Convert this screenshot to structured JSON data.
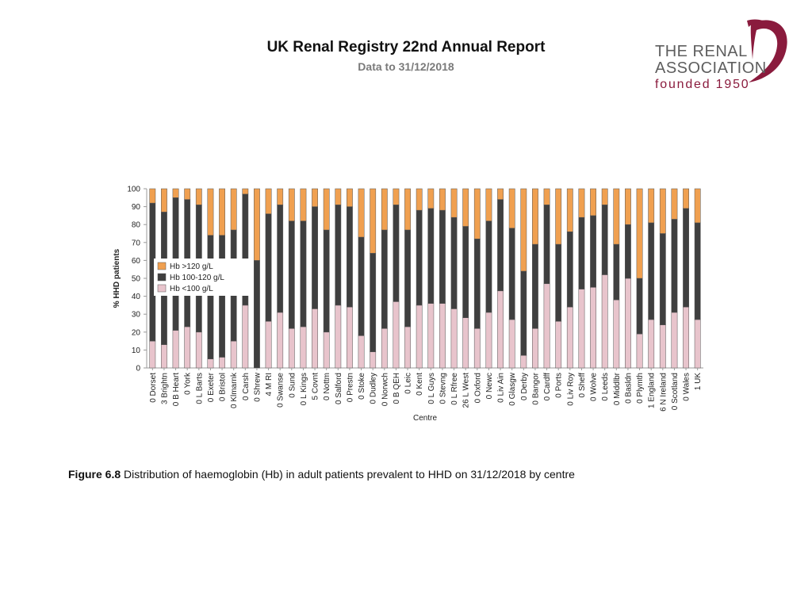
{
  "header": {
    "title": "UK Renal Registry 22nd Annual Report",
    "subtitle": "Data to 31/12/2018"
  },
  "logo": {
    "line1": "THE RENAL",
    "line2": "ASSOCIATION",
    "line3": "founded 1950",
    "color_text": "#5e5e5e",
    "color_accent": "#8a1b3d"
  },
  "caption": {
    "label": "Figure 6.8",
    "text": "Distribution of haemoglobin (Hb) in adult patients prevalent to HHD on 31/12/2018 by centre"
  },
  "chart_data": {
    "type": "bar",
    "stacked": true,
    "xlabel": "Centre",
    "ylabel": "% HHD patients",
    "ylim": [
      0,
      100
    ],
    "yticks": [
      0,
      10,
      20,
      30,
      40,
      50,
      60,
      70,
      80,
      90,
      100
    ],
    "legend_position": "middle-left",
    "categories": [
      "0 Dorset",
      "3 Brightn",
      "0 B Heart",
      "0 York",
      "0 L Barts",
      "0 Exeter",
      "0 Bristol",
      "0 Klmarnk",
      "0 Carsh",
      "0 Shrew",
      "4 M RI",
      "0 Swanse",
      "0 Sund",
      "0 L Kings",
      "5 Covnt",
      "0 Nottm",
      "0 Salford",
      "0 Prestn",
      "0 Stoke",
      "0 Dudley",
      "0 Norwch",
      "0 B QEH",
      "0 Leic",
      "0 Kent",
      "0 L Guys",
      "0 Stevng",
      "0 L Rfree",
      "26 L West",
      "0 Oxford",
      "0 Newc",
      "0 Liv Ain",
      "0 Glasgw",
      "0 Derby",
      "0 Bangor",
      "0 Cardff",
      "0 Ports",
      "0 Liv Roy",
      "0 Sheff",
      "0 Wolve",
      "0 Leeds",
      "0 Middlbr",
      "0 Basldn",
      "0 Plymth",
      "1 England",
      "6 N Ireland",
      "0 Scotland",
      "0 Wales",
      "1 UK"
    ],
    "series": [
      {
        "name": "Hb <100 g/L",
        "color": "#e8c4cc",
        "values": [
          15,
          13,
          21,
          23,
          20,
          5,
          6,
          15,
          35,
          0,
          26,
          31,
          22,
          23,
          33,
          20,
          35,
          34,
          18,
          9,
          22,
          37,
          23,
          35,
          36,
          36,
          33,
          28,
          22,
          31,
          43,
          27,
          7,
          22,
          47,
          26,
          34,
          44,
          45,
          52,
          38,
          50,
          19,
          27,
          24,
          31,
          34,
          27
        ]
      },
      {
        "name": "Hb 100-120 g/L",
        "color": "#3f3f3f",
        "values": [
          77,
          74,
          74,
          71,
          71,
          69,
          68,
          62,
          62,
          60,
          60,
          60,
          60,
          59,
          57,
          57,
          56,
          56,
          55,
          55,
          55,
          54,
          54,
          53,
          53,
          52,
          51,
          51,
          50,
          51,
          51,
          51,
          47,
          47,
          44,
          43,
          42,
          40,
          40,
          39,
          31,
          30,
          31,
          54,
          51,
          52,
          55,
          54
        ]
      },
      {
        "name": "Hb >120 g/L",
        "color": "#f0a050",
        "values": [
          8,
          13,
          5,
          6,
          9,
          26,
          26,
          23,
          3,
          40,
          14,
          9,
          18,
          18,
          10,
          23,
          9,
          10,
          27,
          36,
          23,
          9,
          23,
          12,
          11,
          12,
          16,
          21,
          28,
          18,
          6,
          22,
          46,
          31,
          9,
          31,
          24,
          16,
          15,
          9,
          31,
          20,
          50,
          19,
          25,
          17,
          11,
          19
        ]
      }
    ]
  }
}
